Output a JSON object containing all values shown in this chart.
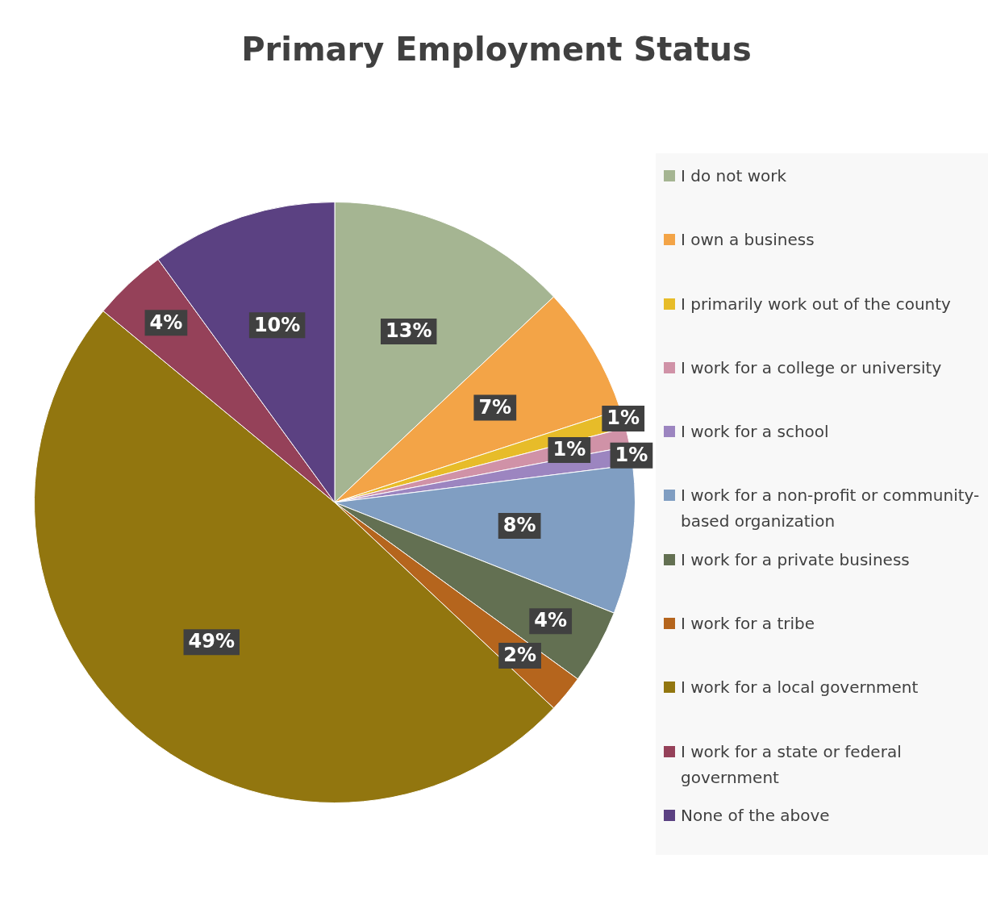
{
  "chart_data": {
    "type": "pie",
    "title": "Primary Employment Status",
    "categories": [
      "I do not work",
      "I own a business",
      "I primarily work out of the county",
      "I work for a college or university",
      "I work for a school",
      "I work for a non-profit or community-based organization",
      "I work for a private business",
      "I work for a tribe",
      "I work for a local government",
      "I work for a state or federal government",
      "None of the above"
    ],
    "values": [
      13,
      7,
      1,
      1,
      1,
      8,
      4,
      2,
      49,
      4,
      10
    ],
    "value_labels": [
      "13%",
      "7%",
      "1%",
      "1%",
      "1%",
      "8%",
      "4%",
      "2%",
      "49%",
      "4%",
      "10%"
    ],
    "colors": [
      "#a5b592",
      "#f3a447",
      "#e7bc29",
      "#d092a7",
      "#9c85c0",
      "#809ec2",
      "#637052",
      "#b5651d",
      "#92760f",
      "#954159",
      "#5b4182"
    ],
    "legend": "right"
  }
}
